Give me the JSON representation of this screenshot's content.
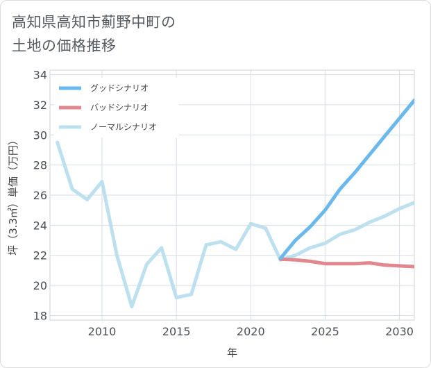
{
  "title_lines": [
    "高知県高知市薊野中町の",
    "土地の価格推移"
  ],
  "chart_data": {
    "type": "line",
    "title": "高知県高知市薊野中町の土地の価格推移",
    "xlabel": "年",
    "ylabel": "坪（3.3㎡）単価（万円）",
    "xlim": [
      2006.5,
      2031
    ],
    "ylim": [
      17.7,
      34.3
    ],
    "xticks": [
      2010,
      2015,
      2020,
      2025,
      2030
    ],
    "yticks": [
      18,
      20,
      22,
      24,
      26,
      28,
      30,
      32,
      34
    ],
    "grid": true,
    "legend_position": "top-left",
    "series": [
      {
        "name": "グッドシナリオ",
        "color": "#6ab8ec",
        "x": [
          2022,
          2023,
          2024,
          2025,
          2026,
          2027,
          2028,
          2029,
          2030,
          2031
        ],
        "values": [
          21.8,
          23.0,
          23.9,
          25.0,
          26.4,
          27.5,
          28.7,
          29.9,
          31.1,
          32.3
        ]
      },
      {
        "name": "バッドシナリオ",
        "color": "#e0878f",
        "x": [
          2022,
          2023,
          2024,
          2025,
          2026,
          2027,
          2028,
          2029,
          2030,
          2031
        ],
        "values": [
          21.75,
          21.7,
          21.6,
          21.45,
          21.45,
          21.45,
          21.5,
          21.35,
          21.3,
          21.25
        ]
      },
      {
        "name": "ノーマルシナリオ",
        "color": "#bde0ee",
        "x": [
          2007,
          2008,
          2009,
          2010,
          2011,
          2012,
          2013,
          2014,
          2015,
          2016,
          2017,
          2018,
          2019,
          2020,
          2021,
          2022,
          2023,
          2024,
          2025,
          2026,
          2027,
          2028,
          2029,
          2030,
          2031
        ],
        "values": [
          29.5,
          26.4,
          25.7,
          26.9,
          22.0,
          18.6,
          21.4,
          22.5,
          19.2,
          19.4,
          22.7,
          22.9,
          22.4,
          24.1,
          23.8,
          21.7,
          22.0,
          22.5,
          22.8,
          23.4,
          23.7,
          24.2,
          24.6,
          25.1,
          25.5
        ]
      }
    ]
  }
}
